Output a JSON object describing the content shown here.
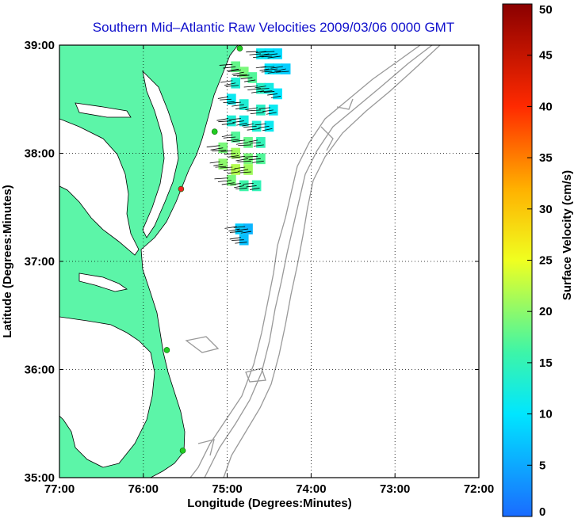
{
  "chart_data": {
    "type": "heatmap",
    "title": "Southern Mid–Atlantic Raw Velocities 2009/03/06 0000 GMT",
    "xlabel": "Longitude (Degrees:Minutes)",
    "ylabel": "Latitude (Degrees:Minutes)",
    "colorbar_label": "Surface Velocity (cm/s)",
    "xlim": [
      -77,
      -72
    ],
    "ylim": [
      35,
      39
    ],
    "x_ticks": [
      {
        "value": -77,
        "label": "77:00"
      },
      {
        "value": -76,
        "label": "76:00"
      },
      {
        "value": -75,
        "label": "75:00"
      },
      {
        "value": -74,
        "label": "74:00"
      },
      {
        "value": -73,
        "label": "73:00"
      },
      {
        "value": -72,
        "label": "72:00"
      }
    ],
    "y_ticks": [
      {
        "value": 35,
        "label": "35:00"
      },
      {
        "value": 36,
        "label": "36:00"
      },
      {
        "value": 37,
        "label": "37:00"
      },
      {
        "value": 38,
        "label": "38:00"
      },
      {
        "value": 39,
        "label": "39:00"
      }
    ],
    "colorbar_range": [
      0,
      50
    ],
    "colorbar_ticks": [
      {
        "value": 0,
        "label": "0"
      },
      {
        "value": 5,
        "label": "5"
      },
      {
        "value": 10,
        "label": "10"
      },
      {
        "value": 15,
        "label": "15"
      },
      {
        "value": 20,
        "label": "20"
      },
      {
        "value": 25,
        "label": "25"
      },
      {
        "value": 30,
        "label": "30"
      },
      {
        "value": 35,
        "label": "35"
      },
      {
        "value": 40,
        "label": "40"
      },
      {
        "value": 45,
        "label": "45"
      },
      {
        "value": 50,
        "label": "50"
      }
    ],
    "grid": true,
    "land_color": "#5cf5a8",
    "bathymetry_color": "#999999",
    "velocity_cells": [
      {
        "lon": -74.6,
        "lat": 38.92,
        "speed": 11
      },
      {
        "lon": -74.5,
        "lat": 38.92,
        "speed": 10
      },
      {
        "lon": -74.4,
        "lat": 38.92,
        "speed": 9
      },
      {
        "lon": -74.5,
        "lat": 38.78,
        "speed": 10
      },
      {
        "lon": -74.4,
        "lat": 38.78,
        "speed": 9
      },
      {
        "lon": -74.3,
        "lat": 38.78,
        "speed": 8
      },
      {
        "lon": -74.9,
        "lat": 38.8,
        "speed": 18
      },
      {
        "lon": -74.8,
        "lat": 38.75,
        "speed": 19
      },
      {
        "lon": -74.7,
        "lat": 38.7,
        "speed": 17
      },
      {
        "lon": -74.9,
        "lat": 38.65,
        "speed": 13
      },
      {
        "lon": -74.6,
        "lat": 38.6,
        "speed": 14
      },
      {
        "lon": -74.5,
        "lat": 38.6,
        "speed": 12
      },
      {
        "lon": -74.4,
        "lat": 38.55,
        "speed": 10
      },
      {
        "lon": -74.95,
        "lat": 38.5,
        "speed": 11
      },
      {
        "lon": -74.8,
        "lat": 38.45,
        "speed": 13
      },
      {
        "lon": -74.6,
        "lat": 38.4,
        "speed": 14
      },
      {
        "lon": -74.45,
        "lat": 38.4,
        "speed": 11
      },
      {
        "lon": -74.95,
        "lat": 38.3,
        "speed": 13
      },
      {
        "lon": -74.8,
        "lat": 38.3,
        "speed": 12
      },
      {
        "lon": -74.65,
        "lat": 38.25,
        "speed": 13
      },
      {
        "lon": -74.5,
        "lat": 38.25,
        "speed": 11
      },
      {
        "lon": -74.9,
        "lat": 38.15,
        "speed": 17
      },
      {
        "lon": -74.75,
        "lat": 38.1,
        "speed": 18
      },
      {
        "lon": -74.6,
        "lat": 38.1,
        "speed": 15
      },
      {
        "lon": -75.05,
        "lat": 38.05,
        "speed": 19
      },
      {
        "lon": -74.9,
        "lat": 38.0,
        "speed": 21
      },
      {
        "lon": -74.75,
        "lat": 37.95,
        "speed": 19
      },
      {
        "lon": -74.6,
        "lat": 37.95,
        "speed": 17
      },
      {
        "lon": -75.05,
        "lat": 37.9,
        "speed": 20
      },
      {
        "lon": -74.9,
        "lat": 37.85,
        "speed": 22
      },
      {
        "lon": -74.75,
        "lat": 37.85,
        "speed": 21
      },
      {
        "lon": -74.95,
        "lat": 37.75,
        "speed": 19
      },
      {
        "lon": -74.8,
        "lat": 37.7,
        "speed": 16
      },
      {
        "lon": -74.65,
        "lat": 37.7,
        "speed": 15
      },
      {
        "lon": -74.85,
        "lat": 37.3,
        "speed": 8
      },
      {
        "lon": -74.75,
        "lat": 37.3,
        "speed": 6
      },
      {
        "lon": -74.8,
        "lat": 37.2,
        "speed": 7
      }
    ],
    "stations": [
      {
        "lon": -74.85,
        "lat": 38.97,
        "color": "#22cc22"
      },
      {
        "lon": -75.15,
        "lat": 38.2,
        "color": "#22cc22"
      },
      {
        "lon": -75.55,
        "lat": 37.67,
        "color": "#ee2222"
      },
      {
        "lon": -75.72,
        "lat": 36.18,
        "color": "#22cc22"
      },
      {
        "lon": -75.53,
        "lat": 35.25,
        "color": "#22cc22"
      }
    ]
  }
}
